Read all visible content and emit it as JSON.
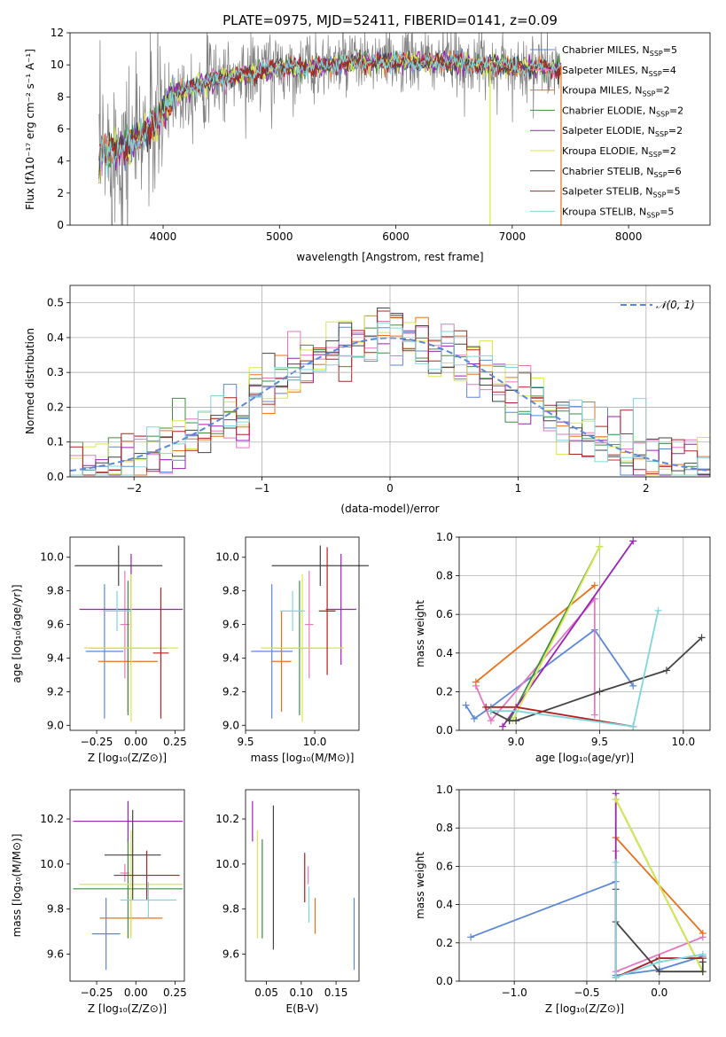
{
  "colors": {
    "chabrier_miles": "#5b87d8",
    "salpeter_miles": "#e377c2",
    "kroupa_miles": "#e8711c",
    "chabrier_elodie": "#3f8f3f",
    "salpeter_elodie": "#9a22b4",
    "kroupa_elodie": "#d8e84a",
    "chabrier_stelib": "#444444",
    "salpeter_stelib": "#b22222",
    "kroupa_stelib": "#7fd6da",
    "data": "#808080",
    "gauss": "#5b87d8"
  },
  "chart_data": [
    {
      "id": "spectrum",
      "type": "line",
      "title": "PLATE=0975, MJD=52411, FIBERID=0141, z=0.09",
      "xlabel": "wavelength [Angstrom, rest frame]",
      "ylabel": "Flux [fλ10⁻¹⁷ erg cm⁻² s⁻¹ A⁻¹]",
      "xlim": [
        3200,
        8700
      ],
      "ylim": [
        0,
        12
      ],
      "xticks": [
        "4000",
        "5000",
        "6000",
        "7000",
        "8000"
      ],
      "yticks": [
        "0",
        "2",
        "4",
        "6",
        "8",
        "10",
        "12"
      ],
      "grid": false,
      "legend_position": "right",
      "continuum_x": [
        3450,
        3500,
        3600,
        3700,
        3800,
        3900,
        4000,
        4100,
        4300,
        4500,
        4700,
        5000,
        5300,
        5600,
        6000,
        6300,
        6600,
        7000,
        7400
      ],
      "continuum_y": [
        4.1,
        4.6,
        4.8,
        5.0,
        5.5,
        6.2,
        7.0,
        8.2,
        8.8,
        9.2,
        9.4,
        9.8,
        9.9,
        10.1,
        10.2,
        10.2,
        10.1,
        9.9,
        9.8
      ],
      "series": [
        {
          "name": "Chabrier MILES, N_SSP=5",
          "color_key": "chabrier_miles"
        },
        {
          "name": "Salpeter MILES, N_SSP=4",
          "color_key": "salpeter_miles"
        },
        {
          "name": "Kroupa MILES, N_SSP=2",
          "color_key": "kroupa_miles"
        },
        {
          "name": "Chabrier ELODIE, N_SSP=2",
          "color_key": "chabrier_elodie"
        },
        {
          "name": "Salpeter ELODIE, N_SSP=2",
          "color_key": "salpeter_elodie"
        },
        {
          "name": "Kroupa ELODIE, N_SSP=2",
          "color_key": "kroupa_elodie"
        },
        {
          "name": "Chabrier STELIB, N_SSP=6",
          "color_key": "chabrier_stelib"
        },
        {
          "name": "Salpeter STELIB, N_SSP=5",
          "color_key": "salpeter_stelib"
        },
        {
          "name": "Kroupa STELIB, N_SSP=5",
          "color_key": "kroupa_stelib"
        }
      ]
    },
    {
      "id": "residuals",
      "type": "bar",
      "xlabel": "(data-model)/error",
      "ylabel": "Normed distribution",
      "xlim": [
        -2.5,
        2.5
      ],
      "ylim": [
        0,
        0.55
      ],
      "xticks": [
        "−2",
        "−1",
        "0",
        "1",
        "2"
      ],
      "yticks": [
        "0.0",
        "0.1",
        "0.2",
        "0.3",
        "0.4",
        "0.5"
      ],
      "grid": true,
      "legend": "𝒩(0, 1)",
      "legend_position": "top-right",
      "bin_width": 0.1
    },
    {
      "id": "age_vs_Z",
      "type": "scatter",
      "xlabel": "Z [log₁₀(Z/Z⊙)]",
      "ylabel": "age  [log₁₀(age/yr)]",
      "xlim": [
        -0.42,
        0.31
      ],
      "ylim": [
        8.97,
        10.12
      ],
      "xticks": [
        "−0.25",
        "0.00",
        "0.25"
      ],
      "xtick_vals": [
        -0.25,
        0,
        0.25
      ],
      "yticks": [
        "9.0",
        "9.2",
        "9.4",
        "9.6",
        "9.8",
        "10.0"
      ],
      "ytick_vals": [
        9.0,
        9.2,
        9.4,
        9.6,
        9.8,
        10.0
      ],
      "points": [
        {
          "c": "chabrier_miles",
          "x": -0.2,
          "dx": 0.12,
          "y": 9.44,
          "dy": 0.4
        },
        {
          "c": "salpeter_miles",
          "x": -0.07,
          "dx": 0.03,
          "y": 9.6,
          "dy": 0.32
        },
        {
          "c": "kroupa_miles",
          "x": -0.05,
          "dx": 0.19,
          "y": 9.38,
          "dy": 0.3
        },
        {
          "c": "chabrier_elodie",
          "x": -0.05,
          "dx": 0.25,
          "y": 9.46,
          "dy": 0.4
        },
        {
          "c": "salpeter_elodie",
          "x": -0.03,
          "dx": 0.33,
          "y": 9.69,
          "dy": 0.33
        },
        {
          "c": "kroupa_elodie",
          "x": -0.03,
          "dx": 0.3,
          "y": 9.46,
          "dy": 0.44
        },
        {
          "c": "chabrier_stelib",
          "x": -0.11,
          "dx": 0.28,
          "y": 9.95,
          "dy": 0.12
        },
        {
          "c": "salpeter_stelib",
          "x": 0.16,
          "dx": 0.05,
          "y": 9.43,
          "dy": 0.39
        },
        {
          "c": "kroupa_stelib",
          "x": -0.12,
          "dx": 0.09,
          "y": 9.68,
          "dy": 0.12
        }
      ]
    },
    {
      "id": "age_vs_mass",
      "type": "scatter",
      "xlabel": "mass [log₁₀(M/M⊙)]",
      "ylabel": "",
      "xlim": [
        9.5,
        10.32
      ],
      "ylim": [
        8.97,
        10.12
      ],
      "xticks": [
        "9.5",
        "10.0"
      ],
      "xtick_vals": [
        9.5,
        10.0
      ],
      "yticks": [
        "9.0",
        "9.2",
        "9.4",
        "9.6",
        "9.8",
        "10.0"
      ],
      "ytick_vals": [
        9.0,
        9.2,
        9.4,
        9.6,
        9.8,
        10.0
      ],
      "points": [
        {
          "c": "chabrier_miles",
          "x": 9.69,
          "dx": 0.15,
          "y": 9.44,
          "dy": 0.4
        },
        {
          "c": "salpeter_miles",
          "x": 9.96,
          "dx": 0.03,
          "y": 9.6,
          "dy": 0.32
        },
        {
          "c": "kroupa_miles",
          "x": 9.76,
          "dx": 0.07,
          "y": 9.38,
          "dy": 0.3
        },
        {
          "c": "chabrier_elodie",
          "x": 9.89,
          "dx": 0.2,
          "y": 9.46,
          "dy": 0.4
        },
        {
          "c": "salpeter_elodie",
          "x": 10.19,
          "dx": 0.11,
          "y": 9.69,
          "dy": 0.33
        },
        {
          "c": "kroupa_elodie",
          "x": 9.91,
          "dx": 0.3,
          "y": 9.46,
          "dy": 0.44
        },
        {
          "c": "chabrier_stelib",
          "x": 10.04,
          "dx": 0.35,
          "y": 9.95,
          "dy": 0.12
        },
        {
          "c": "salpeter_stelib",
          "x": 10.09,
          "dx": 0.06,
          "y": 9.68,
          "dy": 0.38
        },
        {
          "c": "kroupa_stelib",
          "x": 9.84,
          "dx": 0.09,
          "y": 9.68,
          "dy": 0.12
        }
      ]
    },
    {
      "id": "mw_vs_age",
      "type": "line",
      "xlabel": "age  [log₁₀(age/yr)]",
      "ylabel": "mass weight",
      "xlim": [
        8.66,
        10.16
      ],
      "ylim": [
        0,
        1.0
      ],
      "xticks": [
        "9.0",
        "9.5",
        "10.0"
      ],
      "xtick_vals": [
        9.0,
        9.5,
        10.0
      ],
      "yticks": [
        "0.0",
        "0.2",
        "0.4",
        "0.6",
        "0.8",
        "1.0"
      ],
      "ytick_vals": [
        0,
        0.2,
        0.4,
        0.6,
        0.8,
        1.0
      ],
      "grid": true,
      "lines": [
        {
          "c": "chabrier_miles",
          "x": [
            8.7,
            8.75,
            8.85,
            9.47,
            9.7
          ],
          "y": [
            0.13,
            0.06,
            0.12,
            0.52,
            0.23
          ]
        },
        {
          "c": "salpeter_miles",
          "x": [
            8.76,
            8.85,
            9.47,
            9.47
          ],
          "y": [
            0.23,
            0.05,
            0.68,
            0.08
          ]
        },
        {
          "c": "kroupa_miles",
          "x": [
            8.76,
            9.47
          ],
          "y": [
            0.25,
            0.75
          ]
        },
        {
          "c": "chabrier_elodie",
          "x": [
            8.96,
            9.5
          ],
          "y": [
            0.05,
            0.95
          ]
        },
        {
          "c": "salpeter_elodie",
          "x": [
            8.92,
            9.7
          ],
          "y": [
            0.02,
            0.98
          ]
        },
        {
          "c": "kroupa_elodie",
          "x": [
            8.98,
            9.5
          ],
          "y": [
            0.05,
            0.95
          ]
        },
        {
          "c": "chabrier_stelib",
          "x": [
            8.85,
            8.96,
            9.0,
            9.5,
            9.9,
            10.11
          ],
          "y": [
            0.1,
            0.05,
            0.05,
            0.2,
            0.31,
            0.48
          ]
        },
        {
          "c": "salpeter_stelib",
          "x": [
            8.82,
            9.0,
            9.7
          ],
          "y": [
            0.12,
            0.12,
            0.02
          ]
        },
        {
          "c": "kroupa_stelib",
          "x": [
            8.85,
            9.0,
            9.7,
            9.85
          ],
          "y": [
            0.1,
            0.1,
            0.02,
            0.62
          ]
        }
      ]
    },
    {
      "id": "mass_vs_Z",
      "type": "scatter",
      "xlabel": "Z [log₁₀(Z/Z⊙)]",
      "ylabel": "mass [log₁₀(M/M⊙)]",
      "xlim": [
        -0.42,
        0.31
      ],
      "ylim": [
        9.48,
        10.33
      ],
      "xticks": [
        "−0.25",
        "0.00",
        "0.25"
      ],
      "xtick_vals": [
        -0.25,
        0,
        0.25
      ],
      "yticks": [
        "9.6",
        "9.8",
        "10.0",
        "10.2"
      ],
      "ytick_vals": [
        9.6,
        9.8,
        10.0,
        10.2
      ],
      "points": [
        {
          "c": "chabrier_miles",
          "x": -0.19,
          "dx": 0.09,
          "y": 9.69,
          "dy": 0.16
        },
        {
          "c": "salpeter_miles",
          "x": -0.07,
          "dx": 0.03,
          "y": 9.96,
          "dy": 0.04
        },
        {
          "c": "kroupa_miles",
          "x": -0.03,
          "dx": 0.2,
          "y": 9.76,
          "dy": 0.08
        },
        {
          "c": "chabrier_elodie",
          "x": -0.05,
          "dx": 0.35,
          "y": 9.89,
          "dy": 0.22
        },
        {
          "c": "salpeter_elodie",
          "x": -0.05,
          "dx": 0.35,
          "y": 10.19,
          "dy": 0.09
        },
        {
          "c": "kroupa_elodie",
          "x": -0.03,
          "dx": 0.33,
          "y": 9.91,
          "dy": 0.24
        },
        {
          "c": "chabrier_stelib",
          "x": -0.02,
          "dx": 0.18,
          "y": 10.04,
          "dy": 0.2
        },
        {
          "c": "salpeter_stelib",
          "x": 0.07,
          "dx": 0.21,
          "y": 9.95,
          "dy": 0.11
        },
        {
          "c": "kroupa_stelib",
          "x": 0.08,
          "dx": 0.18,
          "y": 9.84,
          "dy": 0.08
        }
      ]
    },
    {
      "id": "mass_vs_ebv",
      "type": "scatter",
      "xlabel": "E(B-V)",
      "ylabel": "",
      "xlim": [
        0.02,
        0.183
      ],
      "ylim": [
        9.48,
        10.33
      ],
      "xticks": [
        "0.05",
        "0.10",
        "0.15"
      ],
      "xtick_vals": [
        0.05,
        0.1,
        0.15
      ],
      "yticks": [
        "9.6",
        "9.8",
        "10.0",
        "10.2"
      ],
      "ytick_vals": [
        9.6,
        9.8,
        10.0,
        10.2
      ],
      "points": [
        {
          "c": "chabrier_miles",
          "x": 0.176,
          "dx": 0,
          "y": 9.69,
          "dy": 0.16
        },
        {
          "c": "salpeter_miles",
          "x": 0.11,
          "dx": 0,
          "y": 9.95,
          "dy": 0.04
        },
        {
          "c": "kroupa_miles",
          "x": 0.12,
          "dx": 0,
          "y": 9.77,
          "dy": 0.08
        },
        {
          "c": "chabrier_elodie",
          "x": 0.044,
          "dx": 0,
          "y": 9.89,
          "dy": 0.22
        },
        {
          "c": "salpeter_elodie",
          "x": 0.03,
          "dx": 0,
          "y": 10.19,
          "dy": 0.09
        },
        {
          "c": "kroupa_elodie",
          "x": 0.037,
          "dx": 0,
          "y": 9.91,
          "dy": 0.24
        },
        {
          "c": "chabrier_stelib",
          "x": 0.06,
          "dx": 0,
          "y": 9.94,
          "dy": 0.32
        },
        {
          "c": "salpeter_stelib",
          "x": 0.105,
          "dx": 0,
          "y": 9.94,
          "dy": 0.11
        },
        {
          "c": "kroupa_stelib",
          "x": 0.111,
          "dx": 0,
          "y": 9.82,
          "dy": 0.08
        }
      ]
    },
    {
      "id": "mw_vs_Z",
      "type": "line",
      "xlabel": "Z [log₁₀(Z/Z⊙)]",
      "ylabel": "mass weight",
      "xlim": [
        -1.38,
        0.35
      ],
      "ylim": [
        0,
        1.0
      ],
      "xticks": [
        "−1.0",
        "−0.5",
        "0.0"
      ],
      "xtick_vals": [
        -1.0,
        -0.5,
        0.0
      ],
      "yticks": [
        "0.0",
        "0.2",
        "0.4",
        "0.6",
        "0.8",
        "1.0"
      ],
      "ytick_vals": [
        0,
        0.2,
        0.4,
        0.6,
        0.8,
        1.0
      ],
      "grid": true,
      "lines": [
        {
          "c": "chabrier_miles",
          "x": [
            -1.3,
            -0.3,
            -0.3,
            0.0,
            0.3
          ],
          "y": [
            0.23,
            0.52,
            0.03,
            0.06,
            0.13
          ]
        },
        {
          "c": "salpeter_miles",
          "x": [
            -0.3,
            -0.3,
            0.3
          ],
          "y": [
            0.68,
            0.05,
            0.23
          ]
        },
        {
          "c": "kroupa_miles",
          "x": [
            -0.3,
            0.3
          ],
          "y": [
            0.75,
            0.25
          ]
        },
        {
          "c": "chabrier_elodie",
          "x": [
            -0.3,
            0.3
          ],
          "y": [
            0.95,
            0.05
          ]
        },
        {
          "c": "salpeter_elodie",
          "x": [
            -0.3,
            -0.3,
            0.0,
            0.3
          ],
          "y": [
            0.98,
            0.02,
            0.12,
            0.12
          ]
        },
        {
          "c": "kroupa_elodie",
          "x": [
            -0.3,
            0.3
          ],
          "y": [
            0.95,
            0.05
          ]
        },
        {
          "c": "chabrier_stelib",
          "x": [
            -0.3,
            -0.3,
            0.0,
            0.3,
            0.3
          ],
          "y": [
            0.48,
            0.31,
            0.05,
            0.05,
            0.1
          ]
        },
        {
          "c": "salpeter_stelib",
          "x": [
            -0.3,
            0.0,
            0.3
          ],
          "y": [
            0.02,
            0.12,
            0.12
          ]
        },
        {
          "c": "kroupa_stelib",
          "x": [
            -0.3,
            -0.3,
            0.0,
            0.3
          ],
          "y": [
            0.62,
            0.02,
            0.1,
            0.14
          ]
        }
      ]
    }
  ]
}
